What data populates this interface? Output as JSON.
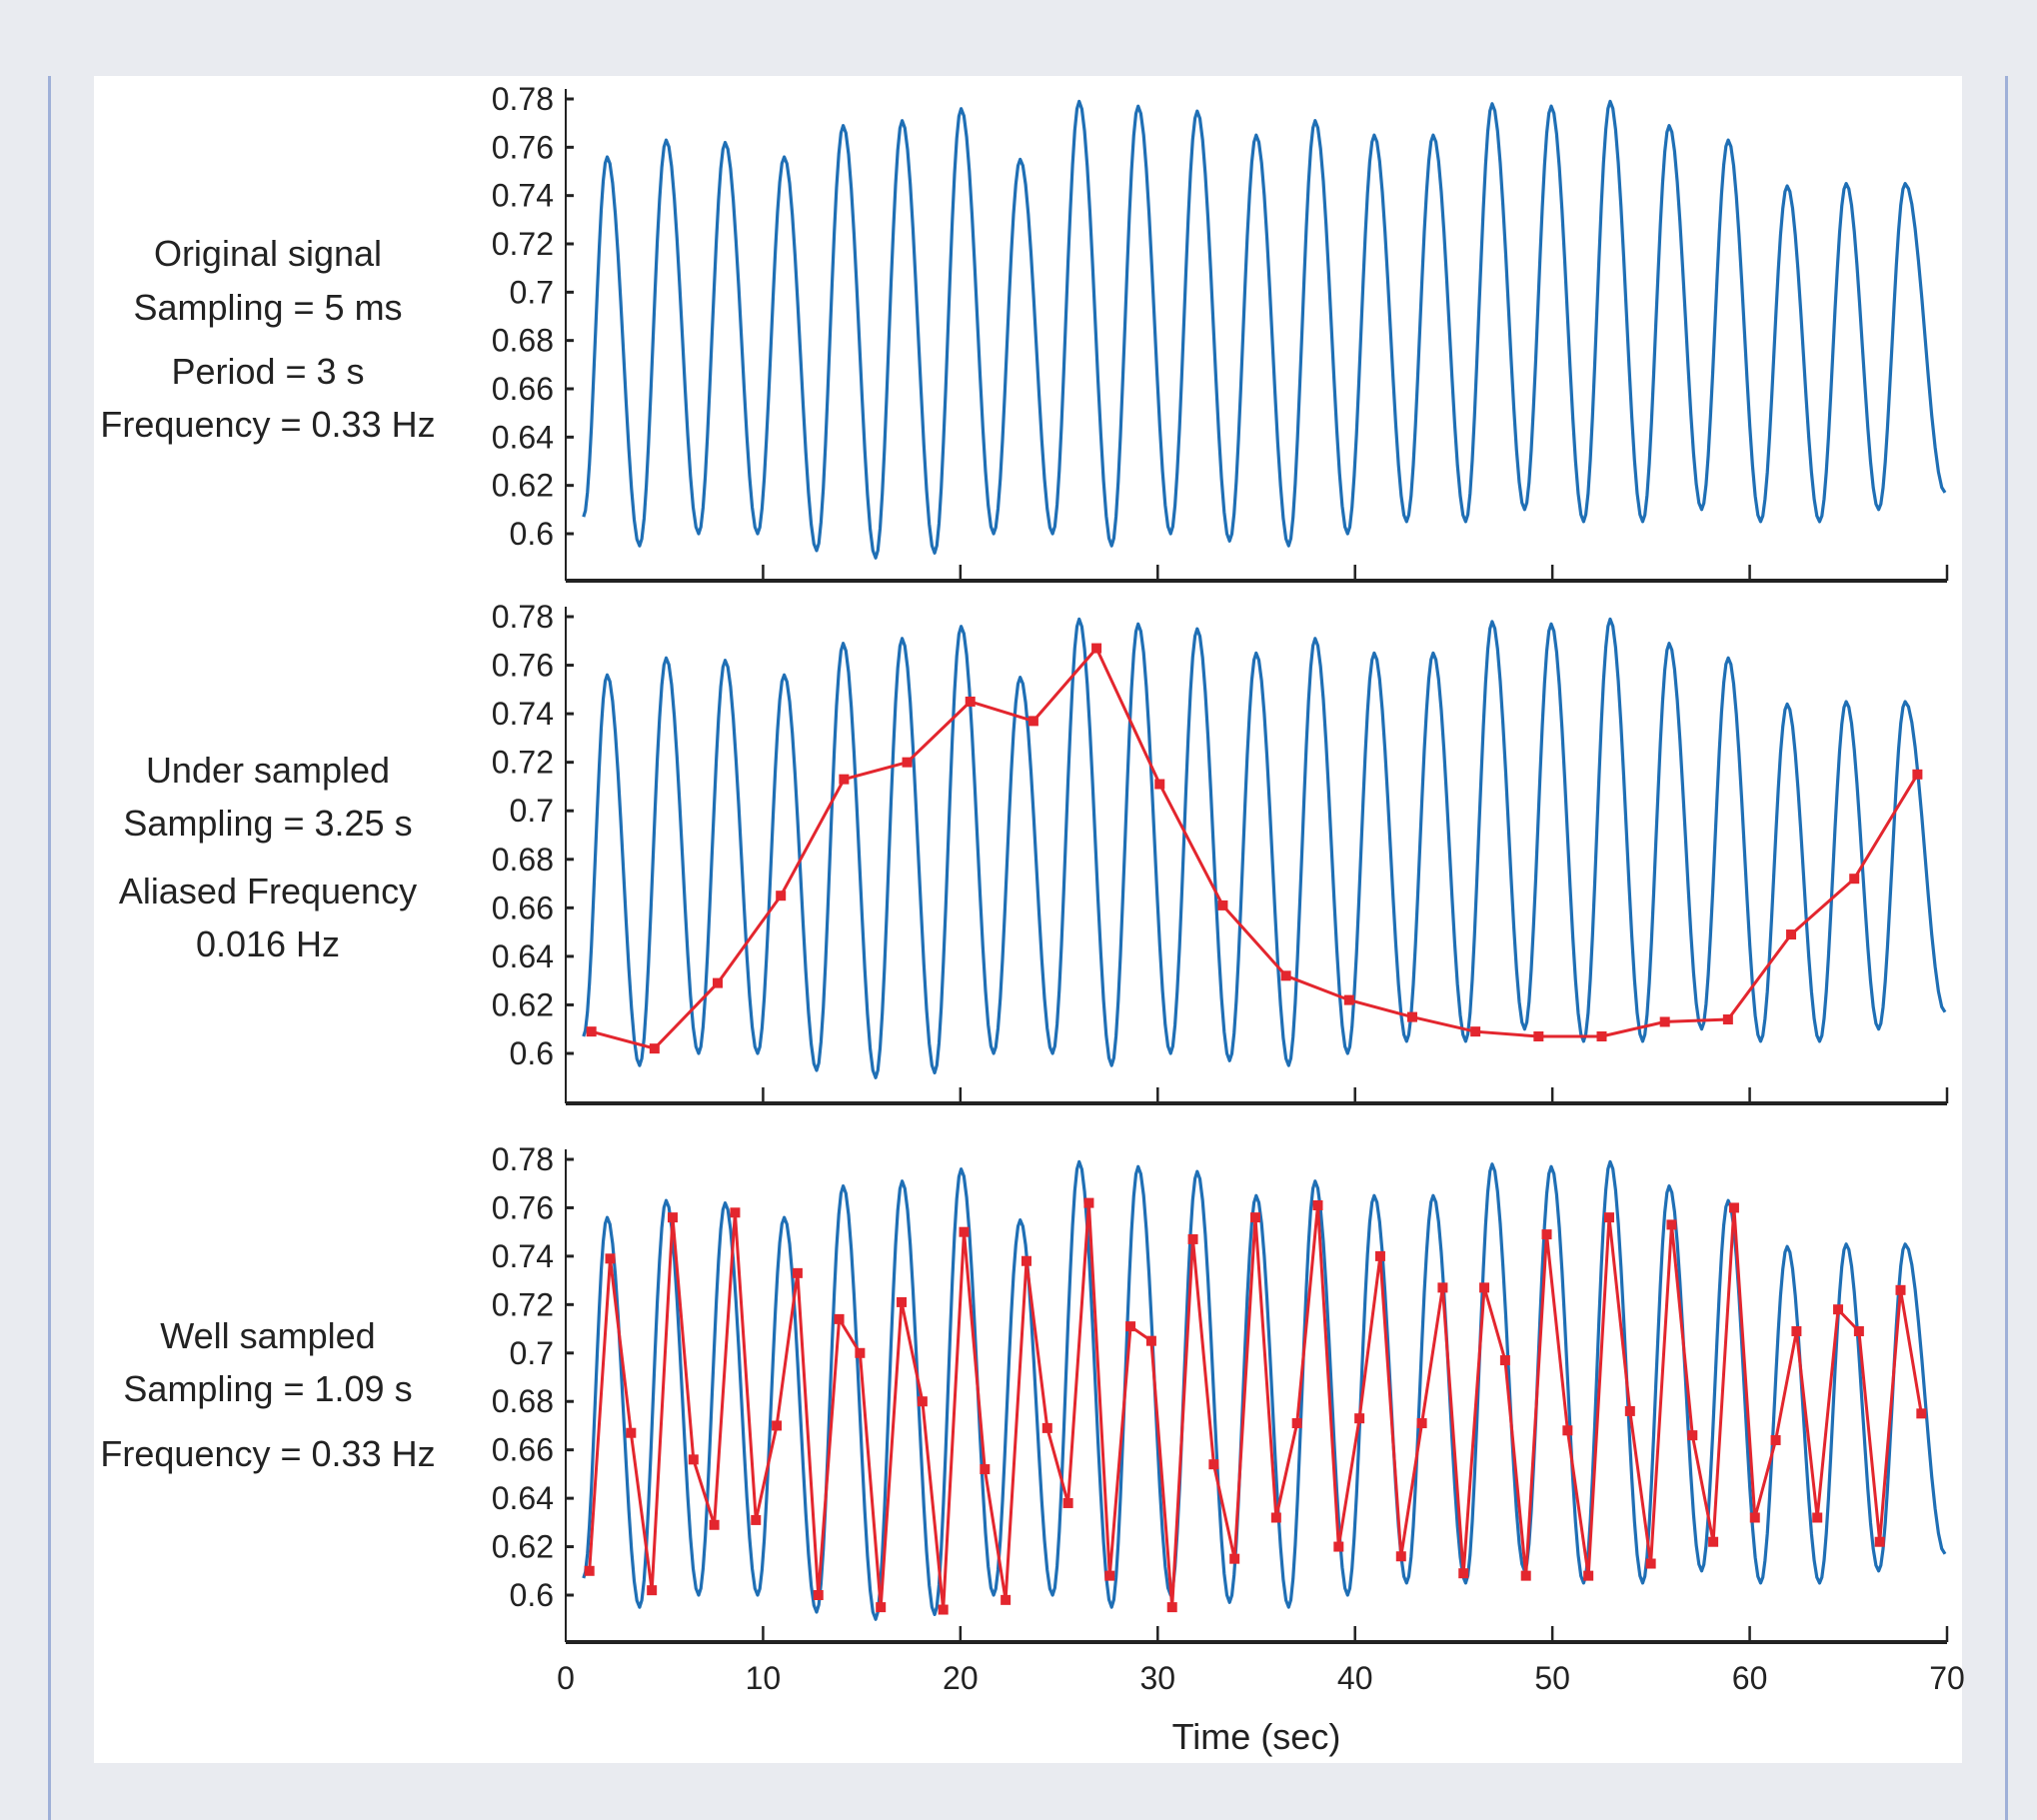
{
  "colors": {
    "signal": "#1f6fb5",
    "samples": "#e3262e",
    "axis": "#222222"
  },
  "chart_data": [
    {
      "type": "line",
      "panel_label": [
        "Original signal",
        "Sampling = 5 ms",
        "Period = 3 s",
        "Frequency = 0.33 Hz"
      ],
      "xlim": [
        0,
        70
      ],
      "ylim": [
        0.58,
        0.78
      ],
      "yticks": [
        "0.6",
        "0.62",
        "0.64",
        "0.66",
        "0.68",
        "0.7",
        "0.72",
        "0.74",
        "0.76",
        "0.78"
      ],
      "series": [
        {
          "name": "original",
          "first_peak_time": 2.1,
          "period": 2.99,
          "peaks": [
            0.756,
            0.763,
            0.762,
            0.756,
            0.769,
            0.771,
            0.776,
            0.755,
            0.779,
            0.777,
            0.775,
            0.765,
            0.771,
            0.765,
            0.765,
            0.778,
            0.777,
            0.779,
            0.769,
            0.763,
            0.744,
            0.745,
            0.745
          ],
          "troughs": [
            0.595,
            0.6,
            0.6,
            0.593,
            0.59,
            0.592,
            0.6,
            0.6,
            0.595,
            0.6,
            0.597,
            0.595,
            0.6,
            0.605,
            0.605,
            0.61,
            0.605,
            0.605,
            0.61,
            0.605,
            0.605,
            0.61,
            0.618
          ],
          "start_value": 0.607,
          "end_value": 0.617
        }
      ]
    },
    {
      "type": "line",
      "panel_label": [
        "Under sampled",
        "Sampling = 3.25 s",
        "Aliased Frequency",
        "0.016 Hz"
      ],
      "xlim": [
        0,
        70
      ],
      "ylim": [
        0.58,
        0.78
      ],
      "series": [
        {
          "name": "under sampled",
          "x_start": 1.3,
          "x_end": 68.5,
          "values": [
            0.609,
            0.602,
            0.629,
            0.665,
            0.713,
            0.72,
            0.745,
            0.737,
            0.767,
            0.711,
            0.661,
            0.632,
            0.622,
            0.615,
            0.609,
            0.607,
            0.607,
            0.613,
            0.614,
            0.649,
            0.672,
            0.715
          ]
        }
      ]
    },
    {
      "type": "line",
      "panel_label": [
        "Well sampled",
        "Sampling = 1.09 s",
        "Frequency = 0.33 Hz"
      ],
      "xlim": [
        0,
        70
      ],
      "ylim": [
        0.58,
        0.78
      ],
      "xticks": [
        "0",
        "10",
        "20",
        "30",
        "40",
        "50",
        "60",
        "70"
      ],
      "xlabel": "Time (sec)",
      "series": [
        {
          "name": "well sampled",
          "x_start": 1.2,
          "x_end": 68.7,
          "values": [
            0.61,
            0.739,
            0.667,
            0.602,
            0.756,
            0.656,
            0.629,
            0.758,
            0.631,
            0.67,
            0.733,
            0.6,
            0.714,
            0.7,
            0.595,
            0.721,
            0.68,
            0.594,
            0.75,
            0.652,
            0.598,
            0.738,
            0.669,
            0.638,
            0.762,
            0.608,
            0.711,
            0.705,
            0.595,
            0.747,
            0.654,
            0.615,
            0.756,
            0.632,
            0.671,
            0.761,
            0.62,
            0.673,
            0.74,
            0.616,
            0.671,
            0.727,
            0.609,
            0.727,
            0.697,
            0.608,
            0.749,
            0.668,
            0.608,
            0.756,
            0.676,
            0.613,
            0.753,
            0.666,
            0.622,
            0.76,
            0.632,
            0.664,
            0.709,
            0.632,
            0.718,
            0.709,
            0.622,
            0.726,
            0.675
          ]
        }
      ]
    }
  ]
}
